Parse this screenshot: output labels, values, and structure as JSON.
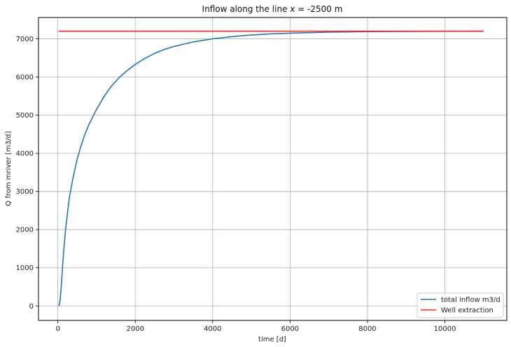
{
  "chart_data": {
    "type": "line",
    "title": "Inflow along the line  x = -2500 m",
    "xlabel": "time [d]",
    "ylabel": "Q from mriver [m3/d]",
    "xlim": [
      -500,
      11600
    ],
    "ylim": [
      -380,
      7560
    ],
    "xticks": [
      0,
      2000,
      4000,
      6000,
      8000,
      10000
    ],
    "yticks": [
      0,
      1000,
      2000,
      3000,
      4000,
      5000,
      6000,
      7000
    ],
    "grid": true,
    "legend_position": "lower-right",
    "series": [
      {
        "name": "total inflow m3/d",
        "color": "#1f77b4",
        "x": [
          20,
          40,
          60,
          80,
          100,
          130,
          160,
          200,
          250,
          300,
          400,
          500,
          600,
          700,
          800,
          1000,
          1200,
          1400,
          1600,
          1800,
          2000,
          2250,
          2500,
          2750,
          3000,
          3500,
          4000,
          4500,
          5000,
          5500,
          6000,
          7000,
          8000,
          9000,
          10000,
          11000
        ],
        "y": [
          0,
          40,
          180,
          420,
          700,
          1150,
          1550,
          2000,
          2450,
          2850,
          3400,
          3850,
          4200,
          4500,
          4750,
          5150,
          5500,
          5780,
          6000,
          6180,
          6330,
          6490,
          6620,
          6720,
          6800,
          6920,
          7000,
          7060,
          7100,
          7130,
          7150,
          7175,
          7190,
          7195,
          7198,
          7200
        ]
      },
      {
        "name": "Well extraction",
        "color": "#ff2a1f",
        "x": [
          20,
          11000
        ],
        "y": [
          7200,
          7200
        ]
      }
    ]
  }
}
